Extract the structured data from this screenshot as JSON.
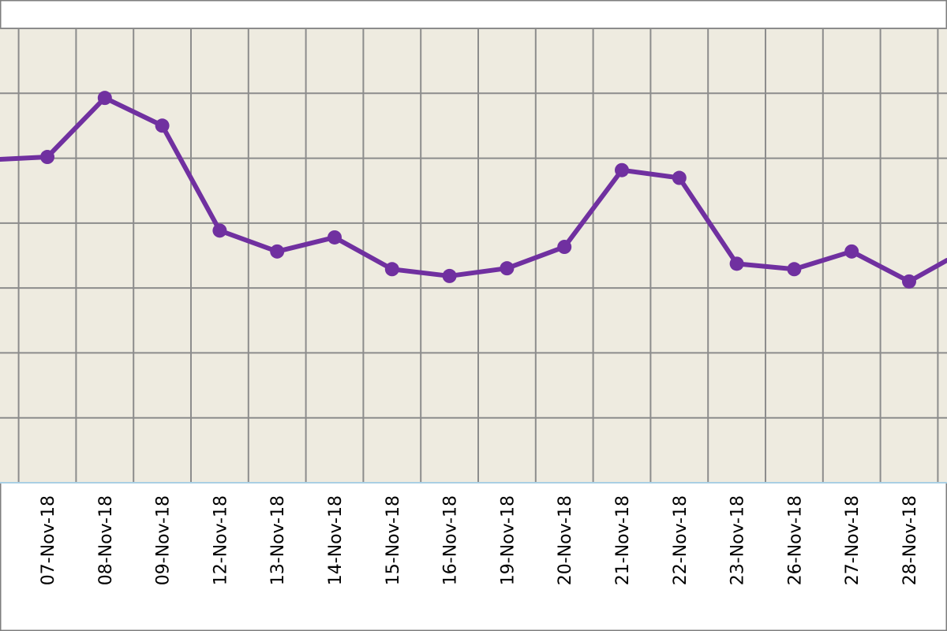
{
  "chart_data": {
    "type": "line",
    "title": "",
    "xlabel": "",
    "ylabel": "",
    "grid": true,
    "x": [
      "07-Nov-18",
      "08-Nov-18",
      "09-Nov-18",
      "12-Nov-18",
      "13-Nov-18",
      "14-Nov-18",
      "15-Nov-18",
      "16-Nov-18",
      "19-Nov-18",
      "20-Nov-18",
      "21-Nov-18",
      "22-Nov-18",
      "23-Nov-18",
      "26-Nov-18",
      "27-Nov-18",
      "28-Nov-18"
    ],
    "series": [
      {
        "values": [
          7.17,
          8.47,
          7.86,
          5.55,
          5.09,
          5.4,
          4.7,
          4.55,
          4.72,
          5.19,
          6.88,
          6.71,
          4.82,
          4.7,
          5.09,
          4.43
        ]
      }
    ],
    "colors": {
      "line": "#7030a0",
      "plot_background": "#eeebe0",
      "grid": "#8c8c8c",
      "axis": "#a9cfe4"
    }
  }
}
